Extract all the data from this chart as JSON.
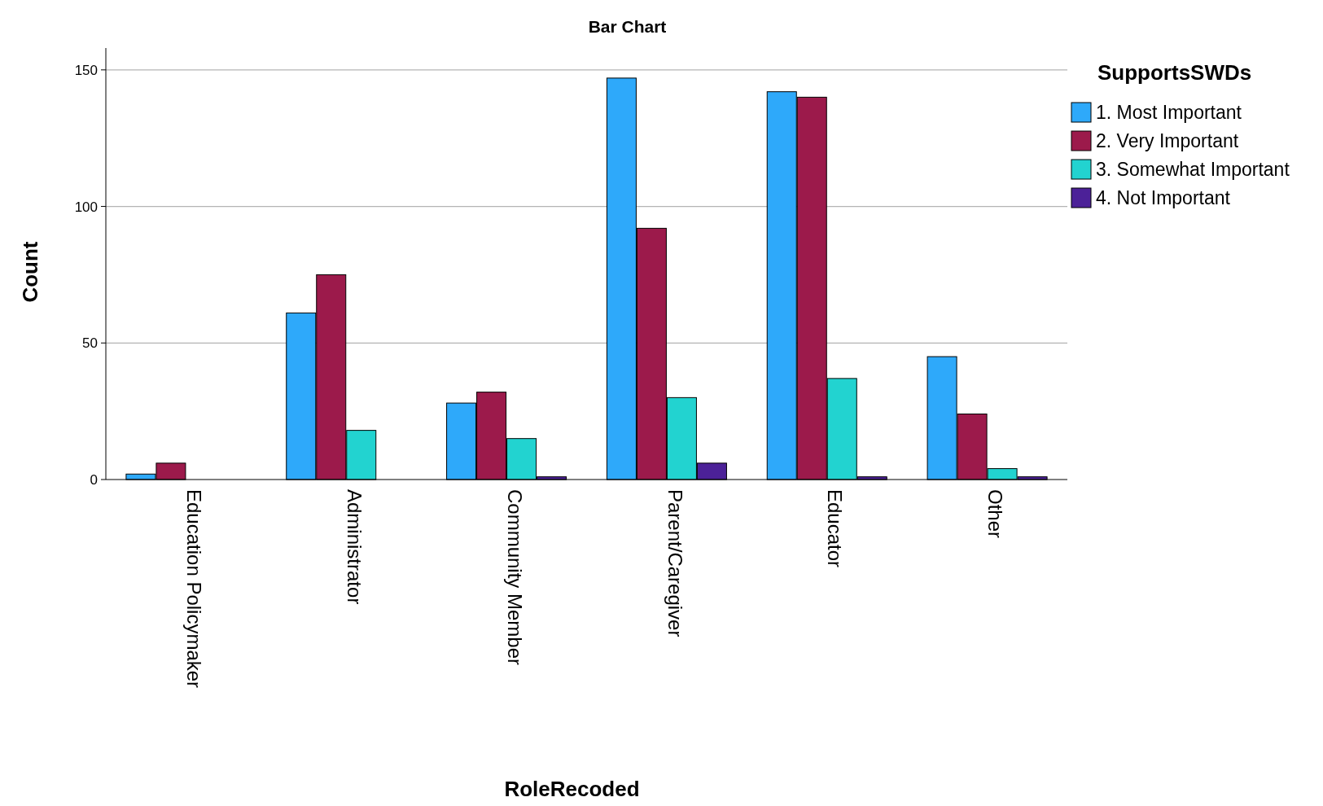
{
  "chart_data": {
    "type": "bar",
    "title": "Bar Chart",
    "xlabel": "RoleRecoded",
    "ylabel": "Count",
    "legend_title": "SupportsSWDs",
    "categories": [
      "Education Policymaker",
      "Administrator",
      "Community Member",
      "Parent/Caregiver",
      "Educator",
      "Other"
    ],
    "series": [
      {
        "name": "1. Most Important",
        "color": "#2ea9fa",
        "values": [
          2,
          61,
          28,
          147,
          142,
          45
        ]
      },
      {
        "name": "2. Very Important",
        "color": "#9c1a4b",
        "values": [
          6,
          75,
          32,
          92,
          140,
          24
        ]
      },
      {
        "name": "3. Somewhat Important",
        "color": "#22d3d0",
        "values": [
          0,
          18,
          15,
          30,
          37,
          4
        ]
      },
      {
        "name": "4. Not Important",
        "color": "#4c2198",
        "values": [
          0,
          0,
          1,
          6,
          1,
          1
        ]
      }
    ],
    "ylim": [
      0,
      158
    ],
    "yticks": [
      0,
      50,
      100,
      150
    ],
    "grid": "y",
    "legend": "top right"
  }
}
